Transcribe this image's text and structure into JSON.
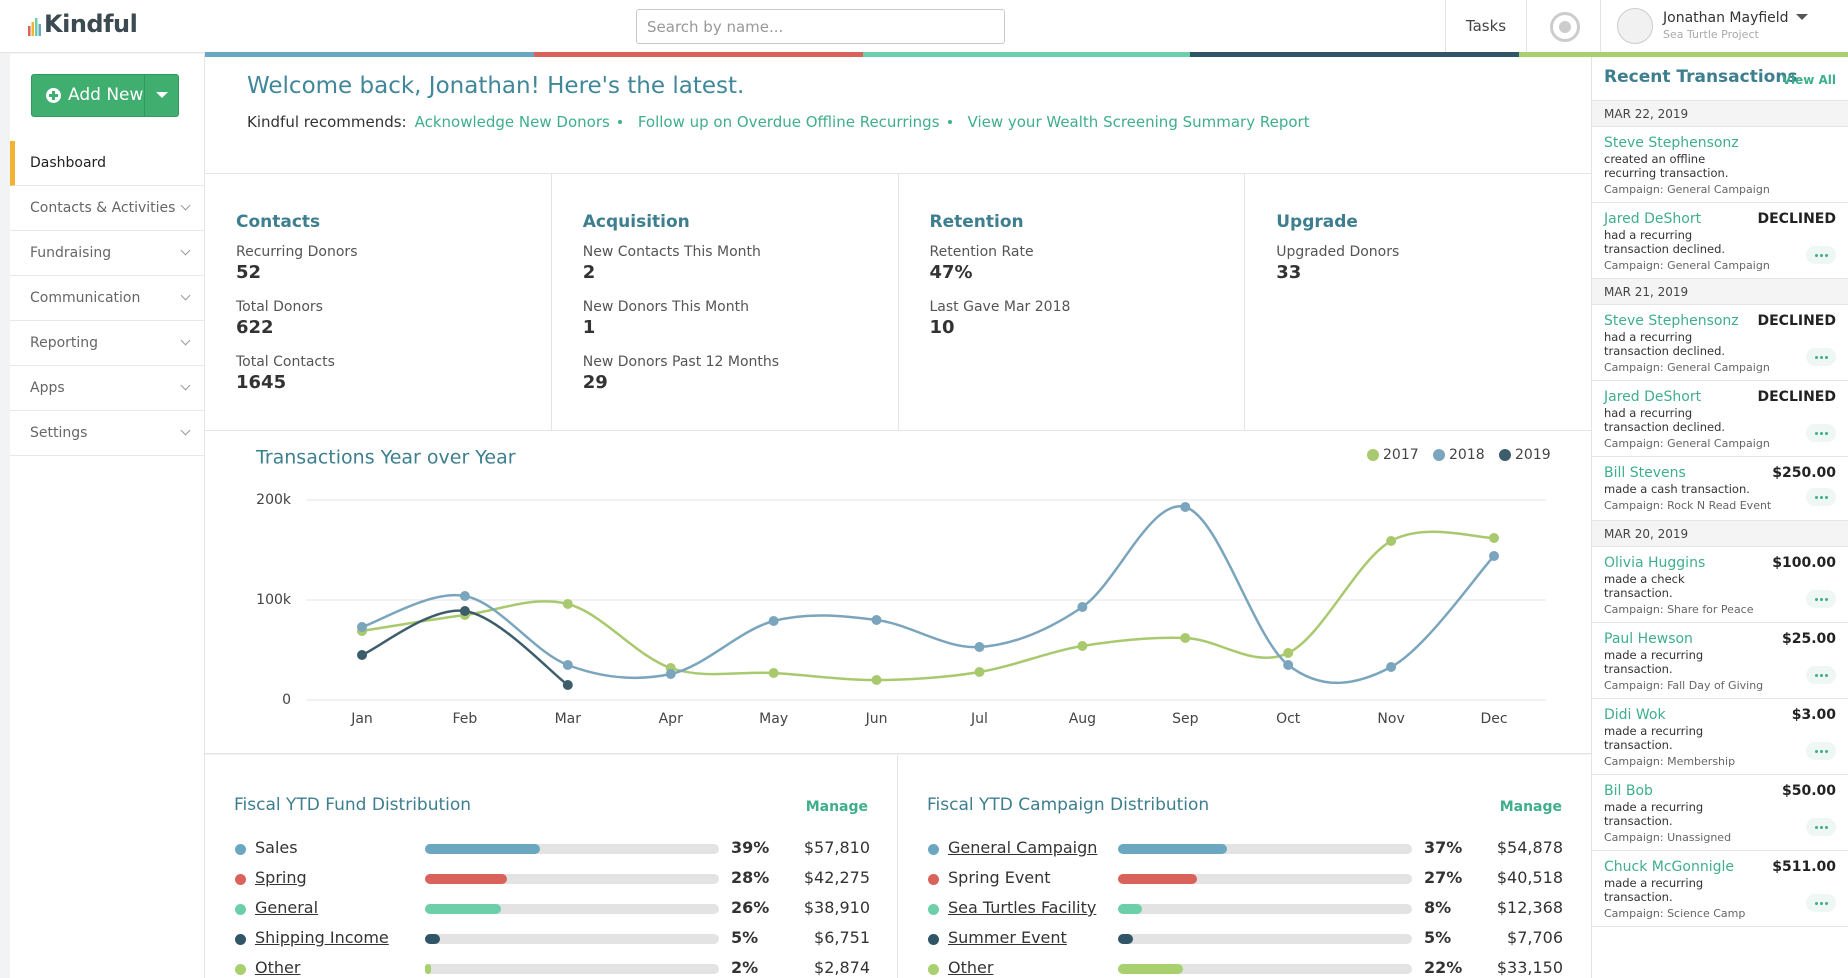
{
  "header": {
    "logo": "Kindful",
    "search_placeholder": "Search by name...",
    "tasks": "Tasks",
    "user_name": "Jonathan Mayfield",
    "user_org": "Sea Turtle Project"
  },
  "sidebar": {
    "add_button": "Add New",
    "nav": [
      "Dashboard",
      "Contacts & Activities",
      "Fundraising",
      "Communication",
      "Reporting",
      "Apps",
      "Settings"
    ]
  },
  "welcome": {
    "title": "Welcome back, Jonathan! Here's the latest.",
    "recommends_label": "Kindful recommends:",
    "links": [
      "Acknowledge New Donors",
      "Follow up on Overdue Offline Recurrings",
      "View your Wealth Screening Summary Report"
    ]
  },
  "stats": [
    {
      "title": "Contacts",
      "items": [
        {
          "label": "Recurring Donors",
          "value": 52
        },
        {
          "label": "Total Donors",
          "value": 622
        },
        {
          "label": "Total Contacts",
          "value": 1645
        }
      ]
    },
    {
      "title": "Acquisition",
      "items": [
        {
          "label": "New Contacts This Month",
          "value": 2
        },
        {
          "label": "New Donors This Month",
          "value": 1
        },
        {
          "label": "New Donors Past 12 Months",
          "value": 29
        }
      ]
    },
    {
      "title": "Retention",
      "items": [
        {
          "label": "Retention Rate",
          "value": "47%"
        },
        {
          "label": "Last Gave Mar 2018",
          "value": 10
        }
      ]
    },
    {
      "title": "Upgrade",
      "items": [
        {
          "label": "Upgraded Donors",
          "value": 33
        }
      ]
    }
  ],
  "chart_data": {
    "type": "line",
    "title": "Transactions Year over Year",
    "categories": [
      "Jan",
      "Feb",
      "Mar",
      "Apr",
      "May",
      "Jun",
      "Jul",
      "Aug",
      "Sep",
      "Oct",
      "Nov",
      "Dec"
    ],
    "series": [
      {
        "name": "2017",
        "color": "#a9c96e",
        "values": [
          69000,
          85000,
          96000,
          32000,
          27000,
          20000,
          28000,
          54000,
          62000,
          47000,
          159000,
          162000
        ]
      },
      {
        "name": "2018",
        "color": "#7aa5bd",
        "values": [
          73000,
          104000,
          35000,
          26000,
          79000,
          80000,
          53000,
          93000,
          193000,
          35000,
          33000,
          144000
        ]
      },
      {
        "name": "2019",
        "color": "#3d5d6d",
        "values": [
          45000,
          89000,
          15000,
          null,
          null,
          null,
          null,
          null,
          null,
          null,
          null,
          null
        ]
      }
    ],
    "ylim": [
      0,
      200000
    ],
    "yticks": [
      {
        "value": 0,
        "label": "0"
      },
      {
        "value": 100000,
        "label": "100k"
      },
      {
        "value": 200000,
        "label": "200k"
      }
    ],
    "grid": true,
    "legend": "top-right"
  },
  "fund_distribution": {
    "title": "Fiscal YTD Fund Distribution",
    "manage": "Manage",
    "rows": [
      {
        "name": "Sales",
        "underline": false,
        "color": "#6ba7c1",
        "pct": 39,
        "pct_label": "39%",
        "amount": "$57,810"
      },
      {
        "name": "Spring",
        "underline": true,
        "color": "#d9635b",
        "pct": 28,
        "pct_label": "28%",
        "amount": "$42,275"
      },
      {
        "name": "General",
        "underline": true,
        "color": "#6dcfa9",
        "pct": 26,
        "pct_label": "26%",
        "amount": "$38,910"
      },
      {
        "name": "Shipping Income",
        "underline": true,
        "color": "#2f5566",
        "pct": 5,
        "pct_label": "5%",
        "amount": "$6,751"
      },
      {
        "name": "Other",
        "underline": true,
        "color": "#a9d06f",
        "pct": 2,
        "pct_label": "2%",
        "amount": "$2,874"
      }
    ]
  },
  "campaign_distribution": {
    "title": "Fiscal YTD Campaign Distribution",
    "manage": "Manage",
    "rows": [
      {
        "name": "General Campaign",
        "underline": true,
        "color": "#6ba7c1",
        "pct": 37,
        "pct_label": "37%",
        "amount": "$54,878"
      },
      {
        "name": "Spring Event",
        "underline": false,
        "color": "#d9635b",
        "pct": 27,
        "pct_label": "27%",
        "amount": "$40,518"
      },
      {
        "name": "Sea Turtles Facility",
        "underline": true,
        "color": "#6dcfa9",
        "pct": 8,
        "pct_label": "8%",
        "amount": "$12,368"
      },
      {
        "name": "Summer Event",
        "underline": true,
        "color": "#2f5566",
        "pct": 5,
        "pct_label": "5%",
        "amount": "$7,706"
      },
      {
        "name": "Other",
        "underline": true,
        "color": "#a9d06f",
        "pct": 22,
        "pct_label": "22%",
        "amount": "$33,150"
      }
    ]
  },
  "transactions": {
    "title": "Recent Transactions",
    "view_all": "View All",
    "groups": [
      {
        "date": "MAR 22, 2019",
        "items": [
          {
            "name": "Steve Stephensonz",
            "status": null,
            "desc": "created an offline recurring transaction.",
            "campaign": "Campaign: General Campaign"
          },
          {
            "name": "Jared DeShort",
            "status": "DECLINED",
            "desc": "had a recurring transaction declined.",
            "campaign": "Campaign: General Campaign"
          }
        ]
      },
      {
        "date": "MAR 21, 2019",
        "items": [
          {
            "name": "Steve Stephensonz",
            "status": "DECLINED",
            "desc": "had a recurring transaction declined.",
            "campaign": "Campaign: General Campaign"
          },
          {
            "name": "Jared DeShort",
            "status": "DECLINED",
            "desc": "had a recurring transaction declined.",
            "campaign": "Campaign: General Campaign"
          },
          {
            "name": "Bill Stevens",
            "status": "$250.00",
            "desc": "made a cash transaction.",
            "campaign": "Campaign: Rock N Read Event"
          }
        ]
      },
      {
        "date": "MAR 20, 2019",
        "items": [
          {
            "name": "Olivia Huggins",
            "status": "$100.00",
            "desc": "made a check transaction.",
            "campaign": "Campaign: Share for Peace"
          },
          {
            "name": "Paul Hewson",
            "status": "$25.00",
            "desc": "made a recurring transaction.",
            "campaign": "Campaign: Fall Day of Giving"
          },
          {
            "name": "Didi Wok",
            "status": "$3.00",
            "desc": "made a recurring transaction.",
            "campaign": "Campaign: Membership"
          },
          {
            "name": "Bil Bob",
            "status": "$50.00",
            "desc": "made a recurring transaction.",
            "campaign": "Campaign: Unassigned"
          },
          {
            "name": "Chuck McGonnigle",
            "status": "$511.00",
            "desc": "made a recurring transaction.",
            "campaign": "Campaign: Science Camp"
          }
        ]
      }
    ]
  }
}
